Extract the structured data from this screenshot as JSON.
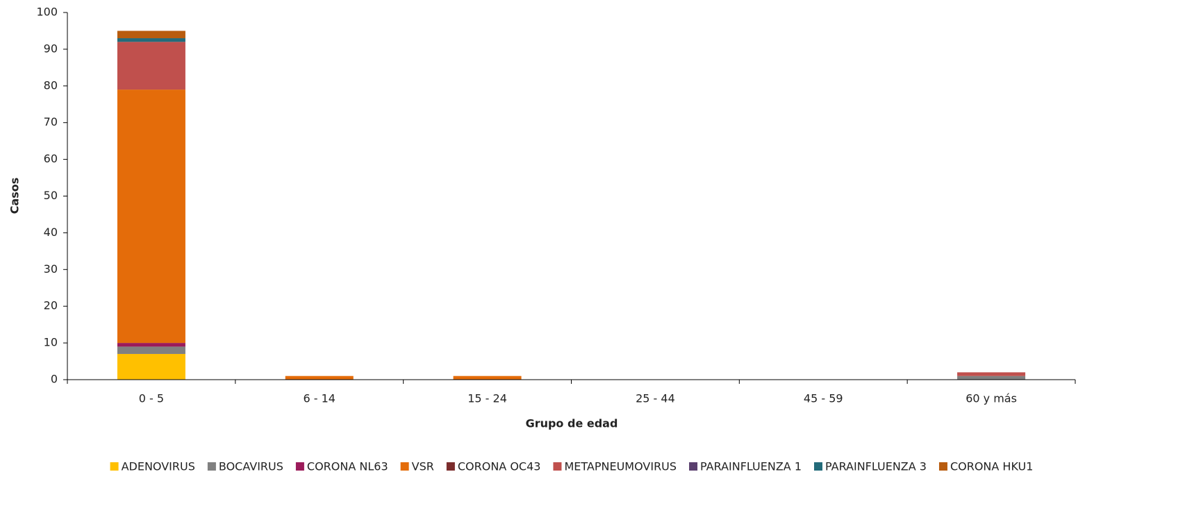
{
  "chart_data": {
    "type": "stacked_bar",
    "x_label": "Grupo de edad",
    "y_label": "Casos",
    "categories": [
      "0 - 5",
      "6 - 14",
      "15 - 24",
      "25 - 44",
      "45 - 59",
      "60 y más"
    ],
    "series": [
      {
        "name": "ADENOVIRUS",
        "color": "#ffc000",
        "values": [
          7,
          0,
          0,
          0,
          0,
          0
        ]
      },
      {
        "name": "BOCAVIRUS",
        "color": "#808080",
        "values": [
          2,
          0,
          0,
          0,
          0,
          1
        ]
      },
      {
        "name": "CORONA NL63",
        "color": "#9b1b5a",
        "values": [
          1,
          0,
          0,
          0,
          0,
          0
        ]
      },
      {
        "name": "VSR",
        "color": "#e46c0a",
        "values": [
          69,
          1,
          1,
          0,
          0,
          0
        ]
      },
      {
        "name": "CORONA OC43",
        "color": "#7b2c2c",
        "values": [
          0,
          0,
          0,
          0,
          0,
          0
        ]
      },
      {
        "name": "METAPNEUMOVIRUS",
        "color": "#c0504d",
        "values": [
          13,
          0,
          0,
          0,
          0,
          1
        ]
      },
      {
        "name": "PARAINFLUENZA 1",
        "color": "#5a3f6e",
        "values": [
          0,
          0,
          0,
          0,
          0,
          0
        ]
      },
      {
        "name": "PARAINFLUENZA 3",
        "color": "#236b7a",
        "values": [
          1,
          0,
          0,
          0,
          0,
          0
        ]
      },
      {
        "name": "CORONA HKU1",
        "color": "#b85c0e",
        "values": [
          2,
          0,
          0,
          0,
          0,
          0
        ]
      }
    ],
    "ylim": [
      0,
      100
    ],
    "yticks": [
      0,
      10,
      20,
      30,
      40,
      50,
      60,
      70,
      80,
      90,
      100
    ],
    "grid": false,
    "legend": "bottom"
  }
}
